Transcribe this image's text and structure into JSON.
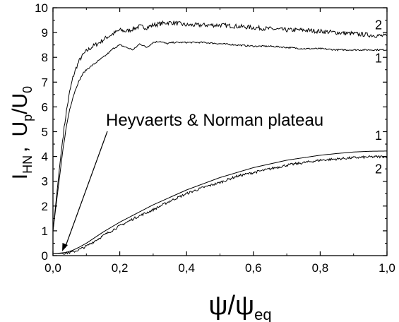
{
  "chart_data": {
    "type": "line",
    "title": "",
    "xlim": [
      0.0,
      1.0
    ],
    "ylim": [
      0,
      10
    ],
    "x_ticks": [
      "0,0",
      "0,2",
      "0,4",
      "0,6",
      "0,8",
      "1,0"
    ],
    "y_ticks": [
      "0",
      "1",
      "2",
      "3",
      "4",
      "5",
      "6",
      "7",
      "8",
      "9",
      "10"
    ],
    "xlabel": {
      "base": "ψ/ψ",
      "sub": "eq"
    },
    "ylabel": {
      "i": "I",
      "i_sub": "HN",
      "sep": ",",
      "u": "U",
      "u_sub": "p",
      "slash": "/U",
      "zero_sub": "0"
    },
    "grid": false,
    "annotation": "Heyvaerts & Norman plateau",
    "series": [
      {
        "name": "2",
        "group": "upper",
        "noise": 0.09,
        "x": [
          0.0,
          0.01,
          0.02,
          0.03,
          0.04,
          0.05,
          0.06,
          0.07,
          0.08,
          0.09,
          0.1,
          0.12,
          0.14,
          0.16,
          0.18,
          0.2,
          0.22,
          0.24,
          0.26,
          0.28,
          0.3,
          0.32,
          0.34,
          0.36,
          0.38,
          0.4,
          0.45,
          0.5,
          0.55,
          0.6,
          0.65,
          0.7,
          0.75,
          0.8,
          0.85,
          0.9,
          0.95,
          1.0
        ],
        "y": [
          1.0,
          2.3,
          3.6,
          4.8,
          5.8,
          6.6,
          7.2,
          7.6,
          7.9,
          8.1,
          8.25,
          8.45,
          8.6,
          8.8,
          8.95,
          9.1,
          9.05,
          9.15,
          9.25,
          9.2,
          9.3,
          9.35,
          9.4,
          9.4,
          9.35,
          9.3,
          9.3,
          9.3,
          9.25,
          9.2,
          9.15,
          9.1,
          9.1,
          9.05,
          9.0,
          8.95,
          8.9,
          8.85
        ]
      },
      {
        "name": "1",
        "group": "upper",
        "noise": 0.03,
        "x": [
          0.0,
          0.01,
          0.02,
          0.03,
          0.04,
          0.05,
          0.06,
          0.07,
          0.08,
          0.09,
          0.1,
          0.12,
          0.14,
          0.16,
          0.18,
          0.2,
          0.22,
          0.24,
          0.26,
          0.28,
          0.3,
          0.32,
          0.34,
          0.36,
          0.38,
          0.4,
          0.45,
          0.5,
          0.55,
          0.6,
          0.65,
          0.7,
          0.75,
          0.8,
          0.85,
          0.9,
          0.95,
          1.0
        ],
        "y": [
          1.0,
          2.1,
          3.2,
          4.3,
          5.2,
          5.9,
          6.4,
          6.8,
          7.1,
          7.35,
          7.5,
          7.7,
          7.9,
          8.1,
          8.35,
          8.5,
          8.4,
          8.3,
          8.55,
          8.4,
          8.6,
          8.65,
          8.55,
          8.6,
          8.6,
          8.6,
          8.6,
          8.55,
          8.5,
          8.45,
          8.45,
          8.4,
          8.35,
          8.35,
          8.3,
          8.3,
          8.3,
          8.3
        ]
      },
      {
        "name": "1",
        "group": "lower",
        "noise": 0.0,
        "x": [
          0.0,
          0.02,
          0.04,
          0.06,
          0.08,
          0.1,
          0.15,
          0.2,
          0.25,
          0.3,
          0.35,
          0.4,
          0.45,
          0.5,
          0.55,
          0.6,
          0.65,
          0.7,
          0.75,
          0.8,
          0.85,
          0.9,
          0.95,
          1.0
        ],
        "y": [
          0.07,
          0.1,
          0.13,
          0.22,
          0.35,
          0.5,
          0.95,
          1.35,
          1.7,
          2.05,
          2.35,
          2.65,
          2.9,
          3.15,
          3.35,
          3.55,
          3.7,
          3.85,
          3.95,
          4.05,
          4.12,
          4.18,
          4.21,
          4.22
        ]
      },
      {
        "name": "2",
        "group": "lower",
        "noise": 0.05,
        "x": [
          0.0,
          0.02,
          0.04,
          0.06,
          0.08,
          0.1,
          0.15,
          0.2,
          0.25,
          0.3,
          0.35,
          0.4,
          0.45,
          0.5,
          0.55,
          0.6,
          0.65,
          0.7,
          0.75,
          0.8,
          0.85,
          0.9,
          0.95,
          1.0
        ],
        "y": [
          0.07,
          0.09,
          0.1,
          0.15,
          0.25,
          0.38,
          0.8,
          1.2,
          1.55,
          1.85,
          2.2,
          2.5,
          2.75,
          2.95,
          3.2,
          3.35,
          3.5,
          3.65,
          3.75,
          3.85,
          3.9,
          3.95,
          3.98,
          4.0
        ]
      }
    ]
  }
}
